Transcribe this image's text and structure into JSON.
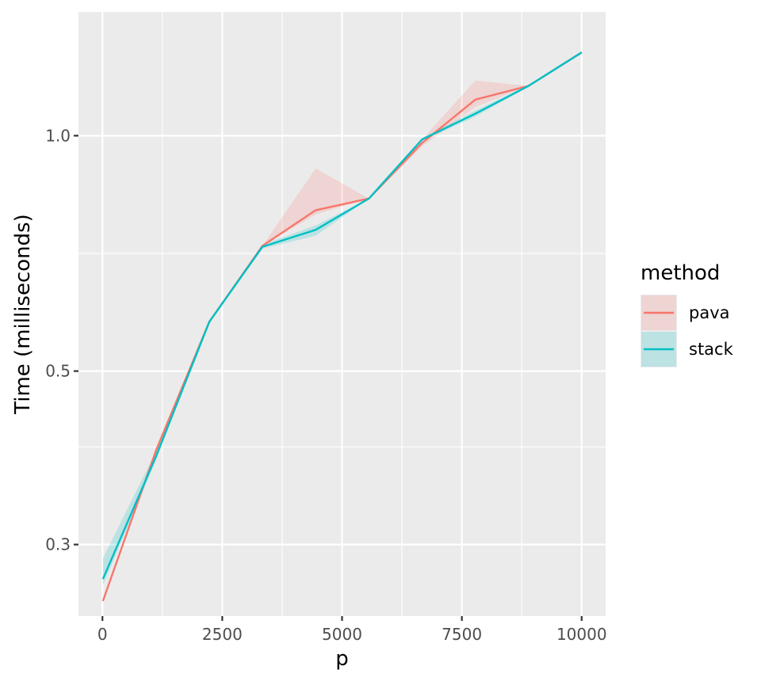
{
  "chart_data": {
    "type": "line",
    "xlabel": "p",
    "ylabel": "Time (milliseconds)",
    "x_scale": "linear",
    "y_scale": "log10",
    "xlim": [
      -500,
      10500
    ],
    "ylim": [
      0.243,
      1.44
    ],
    "x_ticks": [
      0,
      2500,
      5000,
      7500,
      10000
    ],
    "x_tick_labels": [
      "0",
      "2500",
      "5000",
      "7500",
      "10000"
    ],
    "x_minor_ticks": [
      1250,
      3750,
      6250,
      8750
    ],
    "y_ticks": [
      0.3,
      0.5,
      1.0
    ],
    "y_tick_labels": [
      "0.3",
      "0.5",
      "1.0"
    ],
    "y_minor_ticks": [
      0.4,
      0.707
    ],
    "grid": true,
    "legend": {
      "title": "method",
      "position": "right"
    },
    "series": [
      {
        "name": "pava",
        "color": "#F8766D",
        "x": [
          10,
          1120,
          2230,
          3340,
          4450,
          5560,
          6670,
          7780,
          8890,
          10000
        ],
        "y": [
          0.254,
          0.396,
          0.578,
          0.723,
          0.803,
          0.831,
          0.979,
          1.112,
          1.158,
          1.278
        ],
        "lower": [
          0.254,
          0.396,
          0.578,
          0.723,
          0.793,
          0.831,
          0.969,
          1.088,
          1.158,
          1.278
        ],
        "upper": [
          0.254,
          0.396,
          0.578,
          0.723,
          0.908,
          0.831,
          0.989,
          1.176,
          1.158,
          1.278
        ]
      },
      {
        "name": "stack",
        "color": "#00BFC4",
        "x": [
          10,
          1120,
          2230,
          3340,
          4450,
          5560,
          6670,
          7780,
          8890,
          10000
        ],
        "y": [
          0.271,
          0.389,
          0.578,
          0.721,
          0.758,
          0.831,
          0.989,
          1.067,
          1.158,
          1.278
        ],
        "lower": [
          0.266,
          0.385,
          0.576,
          0.717,
          0.745,
          0.831,
          0.985,
          1.058,
          1.155,
          1.278
        ],
        "upper": [
          0.288,
          0.395,
          0.58,
          0.726,
          0.768,
          0.831,
          0.993,
          1.077,
          1.161,
          1.278
        ]
      }
    ]
  }
}
